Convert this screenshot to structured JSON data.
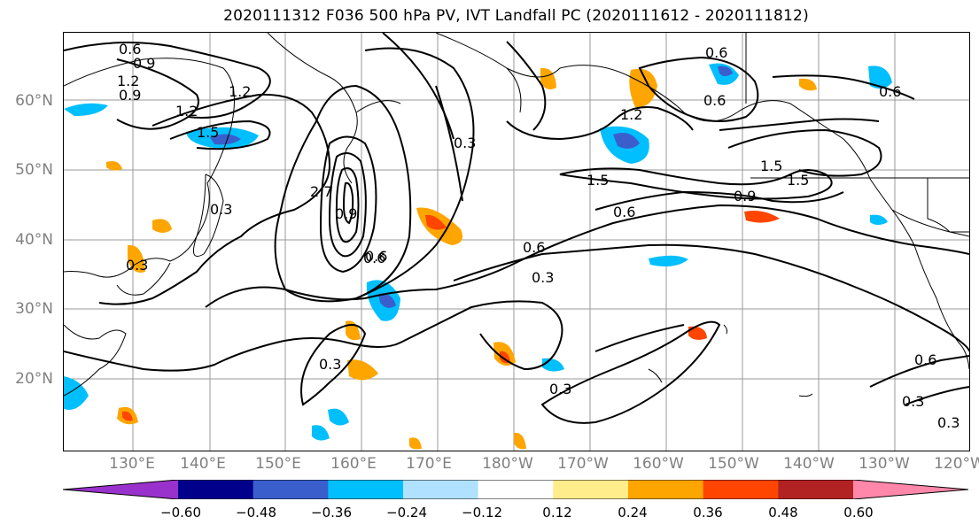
{
  "title": "2020111312 F036 500 hPa PV, IVT Landfall PC (2020111612 - 2020111812)",
  "lat_labels": [
    "60°N",
    "50°N",
    "40°N",
    "30°N",
    "20°N"
  ],
  "lon_labels": [
    "130°E",
    "140°E",
    "150°E",
    "160°E",
    "170°E",
    "180°W",
    "170°W",
    "160°W",
    "150°W",
    "140°W",
    "130°W",
    "120°W"
  ],
  "contour_labels": [
    "0.6",
    "0.9",
    "1.2",
    "1.2",
    "0.9",
    "1.5",
    "1.2",
    "0.3",
    "0.3",
    "0.6",
    "0.3",
    "2.7",
    "0.9",
    "0.3",
    "0.6",
    "1.2",
    "1.5",
    "0.6",
    "0.9",
    "0.6",
    "0.6",
    "1.5",
    "1.5",
    "0.6",
    "0.6",
    "0.3",
    "0.3",
    "0.6",
    "0.3",
    "0.3"
  ],
  "colorbar": {
    "ticks": [
      "−0.60",
      "−0.48",
      "−0.36",
      "−0.24",
      "−0.12",
      "0.12",
      "0.24",
      "0.36",
      "0.48",
      "0.60"
    ],
    "colors": [
      "#9932cc",
      "#00008b",
      "#3a5fcd",
      "#00bfff",
      "#b0e2ff",
      "#ffffff",
      "#ffec8b",
      "#ffa500",
      "#ff4500",
      "#b22222",
      "#ff88aa"
    ]
  }
}
